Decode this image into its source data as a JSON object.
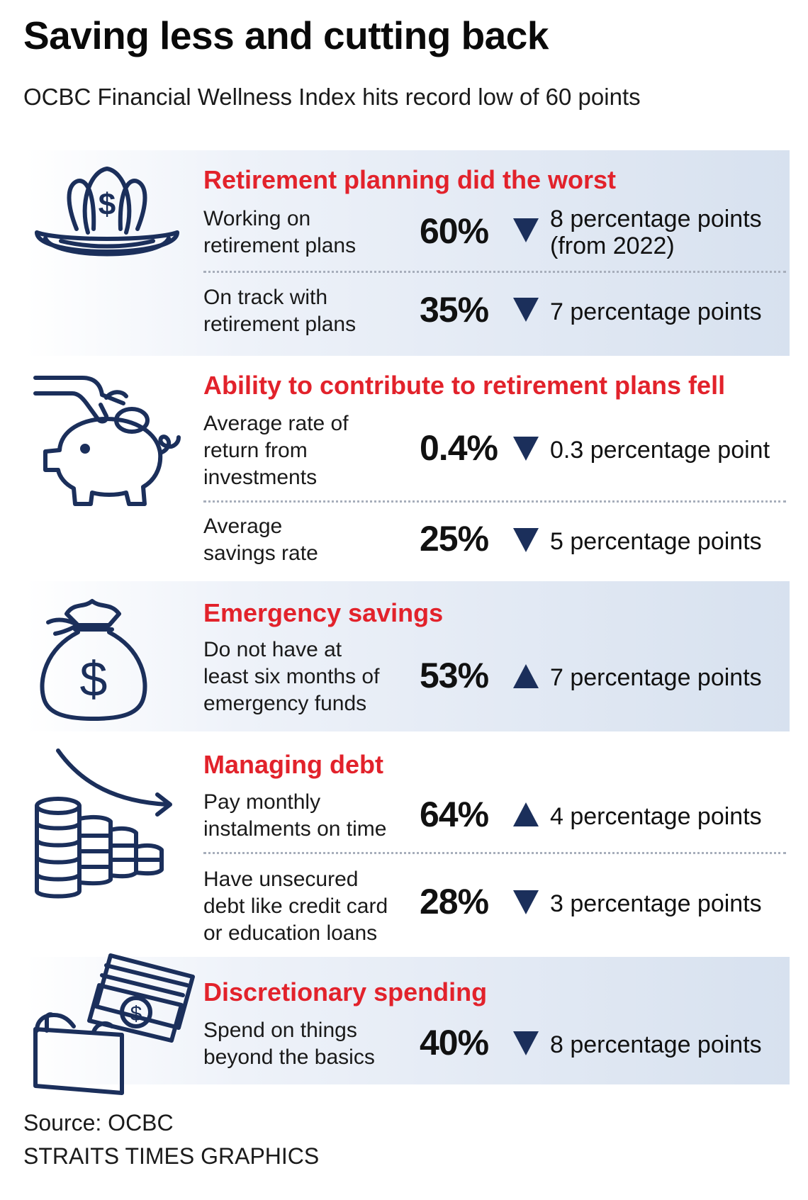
{
  "title": "Saving less and cutting back",
  "subtitle": "OCBC Financial Wellness Index hits record low of 60 points",
  "colors": {
    "heading": "#e2222b",
    "icon": "#1b2f5b",
    "band_end": "#d7e1ef",
    "arrow": "#1b2f5b"
  },
  "sections": [
    {
      "icon": "nest-egg-icon",
      "heading": "Retirement planning did the worst",
      "rows": [
        {
          "label": "Working on\nretirement plans",
          "value": "60%",
          "direction": "down",
          "change": "8 percentage points\n(from 2022)"
        },
        {
          "label": "On track with\nretirement plans",
          "value": "35%",
          "direction": "down",
          "change": "7 percentage points"
        }
      ]
    },
    {
      "icon": "piggy-bank-icon",
      "heading": "Ability to contribute to retirement plans fell",
      "rows": [
        {
          "label": "Average rate of\nreturn from\ninvestments",
          "value": "0.4%",
          "direction": "down",
          "change": "0.3 percentage point"
        },
        {
          "label": "Average\nsavings rate",
          "value": "25%",
          "direction": "down",
          "change": "5 percentage points"
        }
      ]
    },
    {
      "icon": "money-bag-icon",
      "heading": "Emergency savings",
      "rows": [
        {
          "label": "Do not have at\nleast six months of\nemergency funds",
          "value": "53%",
          "direction": "up",
          "change": "7 percentage points"
        }
      ]
    },
    {
      "icon": "coin-stacks-icon",
      "heading": "Managing debt",
      "rows": [
        {
          "label": "Pay monthly\ninstalments on time",
          "value": "64%",
          "direction": "up",
          "change": "4 percentage points"
        },
        {
          "label": "Have unsecured\ndebt like credit card\nor education loans",
          "value": "28%",
          "direction": "down",
          "change": "3 percentage points"
        }
      ]
    },
    {
      "icon": "wallet-cash-icon",
      "heading": "Discretionary spending",
      "rows": [
        {
          "label": "Spend on things\nbeyond the basics",
          "value": "40%",
          "direction": "down",
          "change": "8 percentage points"
        }
      ]
    }
  ],
  "source": "Source: OCBC",
  "credit": "STRAITS TIMES GRAPHICS"
}
